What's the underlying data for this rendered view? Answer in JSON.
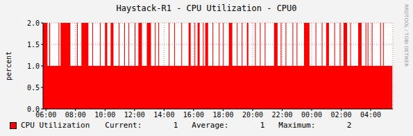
{
  "chart_data": {
    "type": "area",
    "title": "Haystack-R1 - CPU Utilization - CPU0",
    "ylabel": "percent",
    "watermark": "RRDTOOL / TOBI OETIKER",
    "legend": "bottom",
    "grid": true,
    "x": [
      5.8,
      6.1,
      6.22,
      6.28,
      6.85,
      6.9,
      6.99,
      7.65,
      8.1,
      8.15,
      8.4,
      8.87,
      9.14,
      9.19,
      9.65,
      9.7,
      10,
      10.15,
      10.38,
      10.57,
      10.93,
      10.98,
      11.3,
      11.35,
      11.59,
      11.64,
      12.01,
      12.06,
      12.26,
      12.5,
      12.83,
      13.11,
      13.38,
      13.43,
      13.61,
      13.66,
      14.32,
      14.37,
      14.69,
      14.74,
      15.17,
      15.22,
      15.66,
      15.8,
      16.06,
      16.11,
      16.27,
      16.41,
      16.63,
      16.68,
      16.79,
      16.98,
      17.28,
      17.33,
      17.71,
      17.76,
      17.99,
      18.04,
      18.39,
      18.62,
      18.93,
      18.98,
      19.26,
      19.31,
      19.61,
      19.71,
      20.16,
      20.21,
      20.49,
      20.54,
      20.82,
      20.87,
      21.45,
      21.69,
      21.9,
      21.95,
      22.23,
      22.28,
      22.7,
      22.75,
      22.98,
      23.03,
      23.48,
      23.85,
      24.26,
      24.31,
      24.68,
      24.73,
      24.98,
      25.17,
      25.53,
      25.58,
      25.9,
      25.95,
      26.16,
      26.4,
      26.61,
      26.66,
      27.15,
      27.38,
      27.65,
      27.7,
      27.79,
      27.84,
      28.07,
      28.12,
      28.64,
      28.69,
      28.83,
      28.88,
      29.46
    ],
    "series": [
      {
        "name": "CPU Utilization",
        "color": "#ff0000",
        "values": [
          2,
          1,
          2,
          1,
          2,
          1,
          2,
          1,
          2,
          1,
          2,
          1,
          2,
          1,
          2,
          1,
          2,
          1,
          2,
          1,
          2,
          1,
          2,
          1,
          2,
          1,
          2,
          1,
          2,
          1,
          2,
          1,
          2,
          1,
          2,
          1,
          2,
          1,
          2,
          1,
          2,
          1,
          2,
          1,
          2,
          1,
          2,
          1,
          2,
          1,
          2,
          1,
          2,
          1,
          2,
          1,
          2,
          1,
          2,
          1,
          2,
          1,
          2,
          1,
          2,
          1,
          2,
          1,
          2,
          1,
          2,
          1,
          2,
          1,
          2,
          1,
          2,
          1,
          2,
          1,
          2,
          1,
          2,
          1,
          2,
          1,
          2,
          1,
          2,
          1,
          2,
          1,
          2,
          1,
          2,
          1,
          2,
          1,
          2,
          1,
          2,
          1,
          2,
          1,
          2,
          1,
          2,
          1,
          2,
          1,
          1
        ]
      }
    ],
    "xlim": [
      5.8,
      29.5
    ],
    "xticks": [
      {
        "value": 6,
        "label": "06:00"
      },
      {
        "value": 8,
        "label": "08:00"
      },
      {
        "value": 10,
        "label": "10:00"
      },
      {
        "value": 12,
        "label": "12:00"
      },
      {
        "value": 14,
        "label": "14:00"
      },
      {
        "value": 16,
        "label": "16:00"
      },
      {
        "value": 18,
        "label": "18:00"
      },
      {
        "value": 20,
        "label": "20:00"
      },
      {
        "value": 22,
        "label": "22:00"
      },
      {
        "value": 24,
        "label": "00:00"
      },
      {
        "value": 26,
        "label": "02:00"
      },
      {
        "value": 28,
        "label": "04:00"
      }
    ],
    "ylim": [
      0,
      2
    ],
    "yticks": [
      {
        "value": 0,
        "label": "0.0"
      },
      {
        "value": 0.5,
        "label": "0.5"
      },
      {
        "value": 1,
        "label": "1.0"
      },
      {
        "value": 1.5,
        "label": "1.5"
      },
      {
        "value": 2,
        "label": "2.0"
      }
    ],
    "stats": [
      {
        "label": "Current:",
        "value": 1
      },
      {
        "label": "Average:",
        "value": 1
      },
      {
        "label": "Maximum:",
        "value": 2
      }
    ]
  }
}
